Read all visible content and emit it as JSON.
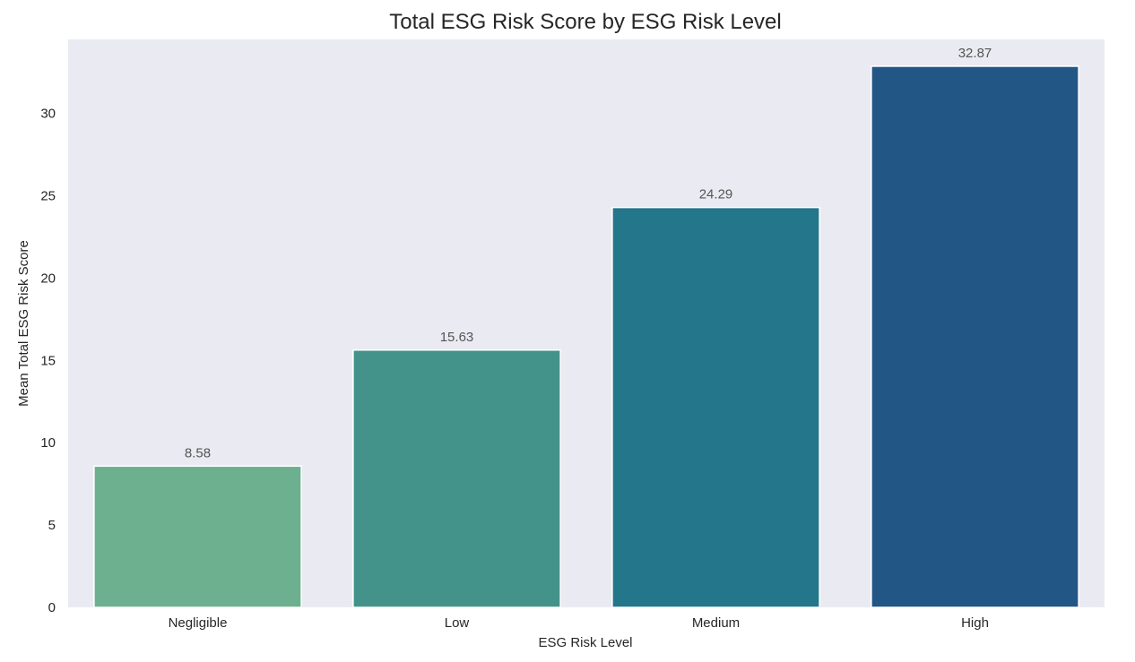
{
  "chart_data": {
    "type": "bar",
    "title": "Total ESG Risk Score by ESG Risk Level",
    "xlabel": "ESG Risk Level",
    "ylabel": "Mean Total ESG Risk Score",
    "categories": [
      "Negligible",
      "Low",
      "Medium",
      "High"
    ],
    "values": [
      8.58,
      15.63,
      24.29,
      32.87
    ],
    "data_labels": [
      "8.58",
      "15.63",
      "24.29",
      "32.87"
    ],
    "bar_colors": [
      "#6cb08f",
      "#44938b",
      "#24768a",
      "#225684"
    ],
    "yticks": [
      0,
      5,
      10,
      15,
      20,
      25,
      30
    ],
    "ylim": [
      0,
      34.5
    ],
    "grid": false,
    "background": "#eaeaf2"
  }
}
